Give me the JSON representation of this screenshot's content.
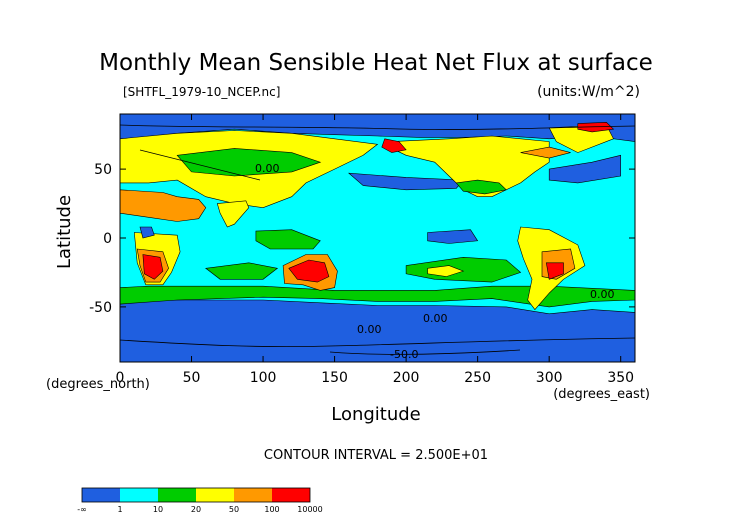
{
  "chart_data": {
    "type": "heatmap",
    "title": "Monthly Mean Sensible Heat Net Flux at surface",
    "source_label": "[SHTFL_1979-10_NCEP.nc]",
    "units_label": "(units:W/m^2)",
    "xlabel": "Longitude",
    "ylabel": "Latitude",
    "x_unit_label": "(degrees_east)",
    "y_unit_label": "(degrees_north)",
    "xlim": [
      0,
      360
    ],
    "ylim": [
      -90,
      90
    ],
    "x_ticks": [
      0,
      50,
      100,
      150,
      200,
      250,
      300,
      350
    ],
    "y_ticks": [
      50,
      0,
      -50
    ],
    "contour_interval_text": "CONTOUR INTERVAL = 2.500E+01",
    "contour_labels": [
      "0.00",
      "0.00",
      "0.00",
      "-50.0",
      "0.00"
    ],
    "colorbar": {
      "labels": [
        "-∞",
        "1",
        "10",
        "20",
        "50",
        "100",
        "10000"
      ],
      "colors": [
        "#1f5fe0",
        "#00ffff",
        "#00cc00",
        "#ffff00",
        "#ff9900",
        "#ff0000"
      ]
    },
    "regions": [
      {
        "name": "antarctic-ocean",
        "level": 0,
        "poly": [
          [
            0,
            -90
          ],
          [
            360,
            -90
          ],
          [
            360,
            -54
          ],
          [
            330,
            -52
          ],
          [
            300,
            -55
          ],
          [
            270,
            -50
          ],
          [
            220,
            -49
          ],
          [
            180,
            -49
          ],
          [
            140,
            -47
          ],
          [
            100,
            -45
          ],
          [
            60,
            -45
          ],
          [
            20,
            -45
          ],
          [
            0,
            -48
          ]
        ]
      },
      {
        "name": "arctic-north",
        "level": 0,
        "poly": [
          [
            0,
            90
          ],
          [
            360,
            90
          ],
          [
            360,
            70
          ],
          [
            330,
            74
          ],
          [
            300,
            72
          ],
          [
            270,
            74
          ],
          [
            240,
            73
          ],
          [
            210,
            73
          ],
          [
            180,
            74
          ],
          [
            150,
            75
          ],
          [
            120,
            76
          ],
          [
            80,
            79
          ],
          [
            40,
            76
          ],
          [
            10,
            72
          ],
          [
            0,
            72
          ]
        ]
      },
      {
        "name": "mid-north-pacific-blue",
        "level": 0,
        "poly": [
          [
            160,
            47
          ],
          [
            200,
            44
          ],
          [
            240,
            42
          ],
          [
            235,
            36
          ],
          [
            200,
            35
          ],
          [
            170,
            38
          ]
        ]
      },
      {
        "name": "north-atlantic-blue",
        "level": 0,
        "poly": [
          [
            300,
            50
          ],
          [
            330,
            55
          ],
          [
            350,
            60
          ],
          [
            350,
            45
          ],
          [
            320,
            40
          ],
          [
            300,
            42
          ]
        ]
      },
      {
        "name": "southern-ocean-green",
        "level": 2,
        "poly": [
          [
            0,
            -48
          ],
          [
            40,
            -45
          ],
          [
            100,
            -43
          ],
          [
            140,
            -44
          ],
          [
            180,
            -46
          ],
          [
            220,
            -46
          ],
          [
            260,
            -44
          ],
          [
            300,
            -50
          ],
          [
            330,
            -46
          ],
          [
            360,
            -45
          ],
          [
            360,
            -38
          ],
          [
            300,
            -35
          ],
          [
            260,
            -35
          ],
          [
            220,
            -38
          ],
          [
            180,
            -38
          ],
          [
            150,
            -38
          ],
          [
            100,
            -35
          ],
          [
            60,
            -35
          ],
          [
            20,
            -35
          ],
          [
            0,
            -36
          ]
        ]
      },
      {
        "name": "south-pacific-green",
        "level": 2,
        "poly": [
          [
            200,
            -20
          ],
          [
            240,
            -14
          ],
          [
            270,
            -16
          ],
          [
            280,
            -25
          ],
          [
            260,
            -32
          ],
          [
            220,
            -30
          ],
          [
            200,
            -26
          ]
        ]
      },
      {
        "name": "south-pacific-yellow",
        "level": 3,
        "poly": [
          [
            215,
            -22
          ],
          [
            230,
            -20
          ],
          [
            240,
            -24
          ],
          [
            228,
            -28
          ],
          [
            215,
            -26
          ]
        ]
      },
      {
        "name": "south-indian-green",
        "level": 2,
        "poly": [
          [
            60,
            -22
          ],
          [
            90,
            -18
          ],
          [
            110,
            -22
          ],
          [
            100,
            -30
          ],
          [
            70,
            -30
          ]
        ]
      },
      {
        "name": "north-america",
        "level": 3,
        "poly": [
          [
            190,
            70
          ],
          [
            230,
            72
          ],
          [
            260,
            74
          ],
          [
            300,
            70
          ],
          [
            300,
            55
          ],
          [
            290,
            48
          ],
          [
            280,
            40
          ],
          [
            260,
            30
          ],
          [
            250,
            30
          ],
          [
            240,
            35
          ],
          [
            230,
            45
          ],
          [
            220,
            55
          ],
          [
            200,
            60
          ],
          [
            190,
            65
          ]
        ]
      },
      {
        "name": "na-green",
        "level": 2,
        "poly": [
          [
            235,
            40
          ],
          [
            250,
            42
          ],
          [
            265,
            40
          ],
          [
            270,
            35
          ],
          [
            255,
            32
          ],
          [
            240,
            34
          ]
        ]
      },
      {
        "name": "na-orange",
        "level": 4,
        "poly": [
          [
            280,
            62
          ],
          [
            300,
            66
          ],
          [
            315,
            62
          ],
          [
            300,
            58
          ]
        ]
      },
      {
        "name": "greenland",
        "level": 3,
        "poly": [
          [
            300,
            80
          ],
          [
            340,
            82
          ],
          [
            345,
            72
          ],
          [
            320,
            62
          ],
          [
            305,
            70
          ]
        ]
      },
      {
        "name": "eurasia",
        "level": 3,
        "poly": [
          [
            0,
            72
          ],
          [
            40,
            76
          ],
          [
            80,
            78
          ],
          [
            120,
            76
          ],
          [
            150,
            72
          ],
          [
            180,
            68
          ],
          [
            170,
            60
          ],
          [
            150,
            50
          ],
          [
            130,
            40
          ],
          [
            120,
            30
          ],
          [
            100,
            22
          ],
          [
            80,
            25
          ],
          [
            60,
            30
          ],
          [
            40,
            42
          ],
          [
            20,
            40
          ],
          [
            0,
            40
          ]
        ]
      },
      {
        "name": "eurasia-green",
        "level": 2,
        "poly": [
          [
            40,
            60
          ],
          [
            80,
            65
          ],
          [
            120,
            62
          ],
          [
            140,
            55
          ],
          [
            120,
            48
          ],
          [
            80,
            45
          ],
          [
            50,
            48
          ]
        ]
      },
      {
        "name": "siberia-red",
        "level": 5,
        "poly": [
          [
            185,
            72
          ],
          [
            195,
            70
          ],
          [
            200,
            64
          ],
          [
            190,
            62
          ],
          [
            183,
            66
          ]
        ]
      },
      {
        "name": "north-africa-arabia",
        "level": 4,
        "poly": [
          [
            0,
            35
          ],
          [
            30,
            33
          ],
          [
            40,
            30
          ],
          [
            55,
            28
          ],
          [
            60,
            22
          ],
          [
            55,
            14
          ],
          [
            40,
            12
          ],
          [
            20,
            15
          ],
          [
            0,
            18
          ]
        ]
      },
      {
        "name": "indian-subcontinent",
        "level": 3,
        "poly": [
          [
            68,
            25
          ],
          [
            88,
            27
          ],
          [
            90,
            22
          ],
          [
            80,
            10
          ],
          [
            75,
            8
          ],
          [
            70,
            18
          ]
        ]
      },
      {
        "name": "africa-south",
        "level": 3,
        "poly": [
          [
            10,
            4
          ],
          [
            40,
            2
          ],
          [
            42,
            -10
          ],
          [
            36,
            -25
          ],
          [
            30,
            -34
          ],
          [
            18,
            -34
          ],
          [
            12,
            -18
          ]
        ]
      },
      {
        "name": "africa-orange",
        "level": 4,
        "poly": [
          [
            12,
            -8
          ],
          [
            30,
            -10
          ],
          [
            34,
            -22
          ],
          [
            28,
            -32
          ],
          [
            18,
            -32
          ],
          [
            14,
            -20
          ]
        ]
      },
      {
        "name": "africa-red",
        "level": 5,
        "poly": [
          [
            16,
            -12
          ],
          [
            28,
            -14
          ],
          [
            30,
            -24
          ],
          [
            24,
            -30
          ],
          [
            17,
            -26
          ]
        ]
      },
      {
        "name": "australia",
        "level": 4,
        "poly": [
          [
            114,
            -20
          ],
          [
            130,
            -12
          ],
          [
            145,
            -12
          ],
          [
            152,
            -24
          ],
          [
            150,
            -36
          ],
          [
            140,
            -38
          ],
          [
            128,
            -34
          ],
          [
            115,
            -33
          ]
        ]
      },
      {
        "name": "australia-red",
        "level": 5,
        "poly": [
          [
            118,
            -22
          ],
          [
            132,
            -16
          ],
          [
            143,
            -18
          ],
          [
            146,
            -28
          ],
          [
            138,
            -32
          ],
          [
            124,
            -30
          ]
        ]
      },
      {
        "name": "south-america",
        "level": 3,
        "poly": [
          [
            280,
            8
          ],
          [
            300,
            6
          ],
          [
            320,
            -5
          ],
          [
            325,
            -20
          ],
          [
            310,
            -30
          ],
          [
            300,
            -40
          ],
          [
            290,
            -52
          ],
          [
            285,
            -45
          ],
          [
            288,
            -30
          ],
          [
            282,
            -15
          ],
          [
            278,
            -2
          ]
        ]
      },
      {
        "name": "sa-orange",
        "level": 4,
        "poly": [
          [
            295,
            -10
          ],
          [
            315,
            -8
          ],
          [
            318,
            -22
          ],
          [
            305,
            -30
          ],
          [
            295,
            -28
          ]
        ]
      },
      {
        "name": "sa-red",
        "level": 5,
        "poly": [
          [
            298,
            -18
          ],
          [
            310,
            -18
          ],
          [
            310,
            -26
          ],
          [
            300,
            -30
          ]
        ]
      },
      {
        "name": "arctic-red-east",
        "level": 5,
        "poly": [
          [
            320,
            83
          ],
          [
            340,
            84
          ],
          [
            345,
            79
          ],
          [
            330,
            77
          ],
          [
            320,
            79
          ]
        ]
      },
      {
        "name": "indonesia-green",
        "level": 2,
        "poly": [
          [
            95,
            5
          ],
          [
            120,
            6
          ],
          [
            140,
            -2
          ],
          [
            135,
            -8
          ],
          [
            105,
            -8
          ],
          [
            95,
            -2
          ]
        ]
      },
      {
        "name": "pacific-warm-pool-blue",
        "level": 0,
        "poly": [
          [
            215,
            4
          ],
          [
            245,
            6
          ],
          [
            250,
            -2
          ],
          [
            230,
            -4
          ],
          [
            215,
            -2
          ]
        ]
      },
      {
        "name": "central-africa-blue",
        "level": 0,
        "poly": [
          [
            14,
            8
          ],
          [
            22,
            8
          ],
          [
            24,
            2
          ],
          [
            16,
            0
          ]
        ]
      }
    ]
  }
}
